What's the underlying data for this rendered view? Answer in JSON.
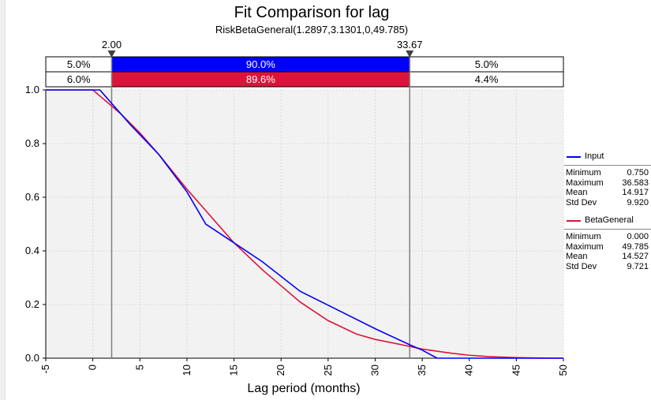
{
  "chart_data": {
    "type": "line",
    "title": "Fit Comparison for lag",
    "subtitle": "RiskBetaGeneral(1.2897,3.1301,0,49.785)",
    "xlabel": "Lag period (months)",
    "ylabel": "",
    "xlim": [
      -5,
      50
    ],
    "ylim": [
      0,
      1
    ],
    "x_ticks": [
      "-5",
      "0",
      "5",
      "10",
      "15",
      "20",
      "25",
      "30",
      "35",
      "40",
      "45",
      "50"
    ],
    "y_ticks": [
      "0.0",
      "0.2",
      "0.4",
      "0.6",
      "0.8",
      "1.0"
    ],
    "grid": true,
    "legend_position": "right",
    "markers": {
      "left": "2.00",
      "right": "33.67",
      "left_value": 2.0,
      "right_value": 33.67
    },
    "bands": [
      {
        "name": "Input",
        "color": "#0000ff",
        "left": "5.0%",
        "middle": "90.0%",
        "right": "5.0%"
      },
      {
        "name": "BetaGeneral",
        "color": "#dc143c",
        "left": "6.0%",
        "middle": "89.6%",
        "right": "4.4%"
      }
    ],
    "series": [
      {
        "name": "Input",
        "color": "#0000ff",
        "x": [
          -5,
          0.75,
          2,
          4,
          7,
          10,
          12,
          15,
          18,
          22,
          26,
          30,
          33.67,
          35,
          36.583,
          50
        ],
        "y": [
          1.0,
          1.0,
          0.95,
          0.87,
          0.76,
          0.62,
          0.5,
          0.43,
          0.36,
          0.25,
          0.18,
          0.11,
          0.05,
          0.03,
          0.0,
          0.0
        ]
      },
      {
        "name": "BetaGeneral",
        "color": "#dc143c",
        "x": [
          -5,
          0,
          1,
          2,
          3,
          5,
          7,
          10,
          12,
          15,
          18,
          20,
          22,
          25,
          28,
          30,
          33.67,
          35,
          38,
          40,
          42,
          45,
          48,
          49.785,
          50
        ],
        "y": [
          1.0,
          1.0,
          0.97,
          0.94,
          0.91,
          0.84,
          0.76,
          0.63,
          0.55,
          0.43,
          0.33,
          0.27,
          0.21,
          0.14,
          0.09,
          0.07,
          0.044,
          0.034,
          0.019,
          0.011,
          0.006,
          0.002,
          0.0003,
          0.0,
          0.0
        ]
      }
    ],
    "stats": [
      {
        "series": "Input",
        "rows": [
          {
            "label": "Minimum",
            "value": "0.750"
          },
          {
            "label": "Maximum",
            "value": "36.583"
          },
          {
            "label": "Mean",
            "value": "14.917"
          },
          {
            "label": "Std Dev",
            "value": "9.920"
          }
        ]
      },
      {
        "series": "BetaGeneral",
        "rows": [
          {
            "label": "Minimum",
            "value": "0.000"
          },
          {
            "label": "Maximum",
            "value": "49.785"
          },
          {
            "label": "Mean",
            "value": "14.527"
          },
          {
            "label": "Std Dev",
            "value": "9.721"
          }
        ]
      }
    ]
  }
}
